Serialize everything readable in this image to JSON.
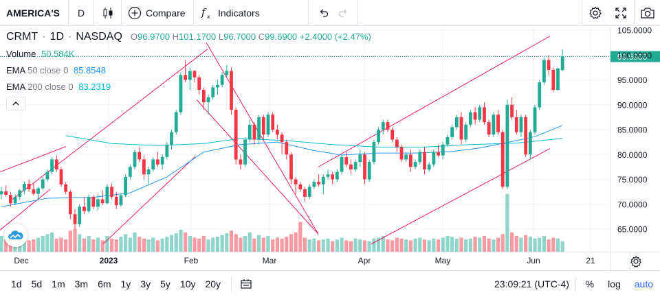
{
  "toolbar": {
    "symbol": "AMERICA'S",
    "interval": "D",
    "compare_label": "Compare",
    "indicators_label": "Indicators",
    "icons": [
      "candles-icon",
      "plus-circle-icon",
      "fx-icon",
      "undo-icon",
      "redo-icon",
      "gear-icon",
      "fullscreen-icon",
      "camera-icon"
    ]
  },
  "legend": {
    "ticker": "CRMT",
    "interval": "1D",
    "exchange": "NASDAQ",
    "o_key": "O",
    "o_val": "96.9700",
    "h_key": "H",
    "h_val": "101.1700",
    "l_key": "L",
    "l_val": "96.7000",
    "c_key": "C",
    "c_val": "99.6900",
    "change": "+2.4000 (+2.47%)",
    "volume_label": "Volume",
    "volume_value": "50.584K",
    "ema50_label": "EMA",
    "ema50_params": "50 close 0",
    "ema50_value": "85.8548",
    "ema200_label": "EMA",
    "ema200_params": "200 close 0",
    "ema200_value": "83.2319"
  },
  "colors": {
    "up": "#22ab94",
    "down": "#f23645",
    "ema50": "#2196f3",
    "ema200": "#00bcd4",
    "trendline": "#e91e63",
    "last_price_bg": "#22ab94"
  },
  "chart_data": {
    "type": "candlestick",
    "y_ticks": [
      "105.0000",
      "100.0000",
      "95.0000",
      "90.0000",
      "85.0000",
      "80.0000",
      "75.0000",
      "70.0000",
      "65.0000"
    ],
    "ylim": [
      62,
      106
    ],
    "x_ticks": [
      {
        "label": "Dec",
        "bold": false
      },
      {
        "label": "2023",
        "bold": true
      },
      {
        "label": "Feb",
        "bold": false
      },
      {
        "label": "Mar",
        "bold": false
      },
      {
        "label": "Apr",
        "bold": false
      },
      {
        "label": "May",
        "bold": false
      },
      {
        "label": "Jun",
        "bold": false
      },
      {
        "label": "21",
        "bold": false
      }
    ],
    "last_price": "99.6900",
    "candles": [
      [
        72.0,
        73.5,
        71.0,
        72.6
      ],
      [
        72.6,
        73.8,
        71.5,
        71.9
      ],
      [
        71.9,
        72.5,
        69.5,
        70.2
      ],
      [
        70.2,
        72.0,
        69.8,
        71.5
      ],
      [
        71.5,
        73.0,
        70.8,
        72.8
      ],
      [
        72.8,
        74.5,
        72.0,
        74.1
      ],
      [
        74.1,
        75.0,
        72.5,
        73.0
      ],
      [
        73.0,
        74.2,
        71.8,
        72.1
      ],
      [
        72.1,
        73.5,
        71.0,
        73.2
      ],
      [
        73.2,
        75.5,
        72.8,
        75.0
      ],
      [
        75.0,
        77.0,
        74.5,
        76.5
      ],
      [
        76.5,
        79.5,
        76.0,
        79.0
      ],
      [
        79.0,
        79.8,
        76.5,
        77.0
      ],
      [
        77.0,
        77.5,
        73.5,
        74.0
      ],
      [
        74.0,
        74.5,
        72.0,
        72.5
      ],
      [
        72.5,
        72.9,
        67.0,
        68.0
      ],
      [
        68.0,
        69.0,
        65.0,
        66.0
      ],
      [
        66.0,
        70.0,
        65.5,
        69.5
      ],
      [
        69.5,
        71.5,
        68.0,
        68.6
      ],
      [
        68.6,
        72.0,
        68.2,
        71.5
      ],
      [
        71.5,
        71.8,
        69.0,
        69.5
      ],
      [
        69.5,
        72.0,
        68.8,
        71.0
      ],
      [
        71.0,
        72.8,
        69.8,
        70.2
      ],
      [
        70.2,
        74.0,
        70.0,
        73.5
      ],
      [
        73.5,
        74.2,
        71.0,
        71.5
      ],
      [
        71.5,
        72.5,
        69.0,
        69.8
      ],
      [
        69.8,
        72.0,
        69.5,
        71.8
      ],
      [
        71.8,
        76.0,
        71.5,
        75.5
      ],
      [
        75.5,
        78.0,
        75.0,
        77.5
      ],
      [
        77.5,
        81.0,
        77.0,
        80.5
      ],
      [
        80.5,
        81.5,
        78.5,
        79.0
      ],
      [
        79.0,
        79.8,
        75.0,
        76.0
      ],
      [
        76.0,
        77.5,
        74.0,
        77.0
      ],
      [
        77.0,
        79.5,
        76.5,
        79.0
      ],
      [
        79.0,
        80.5,
        77.5,
        78.0
      ],
      [
        78.0,
        80.0,
        77.0,
        79.5
      ],
      [
        79.5,
        82.5,
        79.0,
        82.0
      ],
      [
        82.0,
        85.0,
        81.0,
        84.5
      ],
      [
        84.5,
        89.0,
        84.0,
        88.5
      ],
      [
        88.5,
        96.5,
        88.0,
        96.0
      ],
      [
        96.0,
        99.0,
        94.5,
        95.0
      ],
      [
        95.0,
        97.5,
        93.0,
        96.8
      ],
      [
        96.8,
        97.0,
        94.5,
        95.5
      ],
      [
        95.5,
        96.0,
        92.0,
        93.0
      ],
      [
        93.0,
        93.5,
        89.0,
        90.5
      ],
      [
        90.5,
        92.0,
        88.0,
        91.5
      ],
      [
        91.5,
        94.0,
        91.0,
        93.5
      ],
      [
        93.5,
        95.0,
        92.0,
        94.0
      ],
      [
        94.0,
        96.5,
        93.5,
        96.0
      ],
      [
        96.0,
        98.0,
        95.5,
        96.8
      ],
      [
        96.8,
        97.5,
        88.0,
        89.0
      ],
      [
        89.0,
        89.5,
        78.0,
        79.0
      ],
      [
        79.0,
        80.0,
        77.0,
        78.0
      ],
      [
        78.0,
        83.5,
        77.5,
        83.0
      ],
      [
        83.0,
        87.0,
        82.5,
        86.0
      ],
      [
        86.0,
        86.5,
        82.0,
        83.0
      ],
      [
        83.0,
        88.0,
        82.0,
        87.5
      ],
      [
        87.5,
        88.0,
        83.0,
        84.0
      ],
      [
        84.0,
        88.5,
        83.5,
        88.0
      ],
      [
        88.0,
        88.5,
        84.5,
        85.0
      ],
      [
        85.0,
        86.0,
        83.0,
        84.0
      ],
      [
        84.0,
        84.5,
        80.0,
        82.5
      ],
      [
        82.5,
        83.0,
        79.0,
        80.0
      ],
      [
        80.0,
        80.5,
        74.0,
        75.0
      ],
      [
        75.0,
        75.5,
        72.0,
        74.0
      ],
      [
        74.0,
        74.5,
        72.5,
        73.0
      ],
      [
        73.0,
        73.5,
        70.5,
        71.5
      ],
      [
        71.5,
        74.0,
        71.0,
        73.5
      ],
      [
        73.5,
        75.0,
        73.0,
        74.5
      ],
      [
        74.5,
        76.0,
        73.5,
        74.0
      ],
      [
        74.0,
        76.0,
        72.0,
        75.5
      ],
      [
        75.5,
        77.0,
        75.0,
        76.0
      ],
      [
        76.0,
        76.5,
        74.0,
        75.0
      ],
      [
        75.0,
        77.0,
        74.5,
        76.5
      ],
      [
        76.5,
        80.0,
        76.0,
        79.5
      ],
      [
        79.5,
        80.5,
        77.5,
        78.0
      ],
      [
        78.0,
        79.0,
        76.0,
        77.0
      ],
      [
        77.0,
        79.0,
        76.5,
        78.5
      ],
      [
        78.5,
        81.0,
        77.5,
        80.0
      ],
      [
        80.0,
        80.5,
        74.0,
        75.0
      ],
      [
        75.0,
        79.0,
        74.5,
        78.5
      ],
      [
        78.5,
        83.0,
        78.0,
        82.5
      ],
      [
        82.5,
        85.5,
        82.0,
        85.0
      ],
      [
        85.0,
        87.0,
        84.0,
        86.5
      ],
      [
        86.5,
        87.0,
        84.5,
        85.0
      ],
      [
        85.0,
        85.5,
        82.5,
        83.0
      ],
      [
        83.0,
        83.5,
        80.5,
        81.5
      ],
      [
        81.5,
        82.0,
        78.5,
        79.0
      ],
      [
        79.0,
        80.5,
        78.5,
        80.0
      ],
      [
        80.0,
        81.0,
        76.5,
        77.5
      ],
      [
        77.5,
        79.0,
        77.0,
        78.5
      ],
      [
        78.5,
        81.0,
        78.0,
        80.5
      ],
      [
        80.5,
        81.5,
        76.0,
        77.0
      ],
      [
        77.0,
        78.5,
        76.5,
        78.0
      ],
      [
        78.0,
        81.0,
        77.5,
        80.5
      ],
      [
        80.5,
        82.0,
        79.5,
        79.8
      ],
      [
        79.8,
        82.5,
        79.0,
        82.0
      ],
      [
        82.0,
        84.0,
        81.5,
        83.5
      ],
      [
        83.5,
        86.0,
        83.0,
        85.5
      ],
      [
        85.5,
        88.0,
        85.0,
        87.5
      ],
      [
        87.5,
        88.5,
        82.0,
        83.0
      ],
      [
        83.0,
        86.5,
        82.5,
        86.0
      ],
      [
        86.0,
        89.0,
        85.5,
        88.5
      ],
      [
        88.5,
        89.5,
        86.0,
        87.0
      ],
      [
        87.0,
        90.0,
        86.5,
        89.5
      ],
      [
        89.5,
        90.5,
        86.0,
        86.5
      ],
      [
        86.5,
        87.0,
        83.5,
        84.0
      ],
      [
        84.0,
        88.5,
        83.5,
        88.0
      ],
      [
        88.0,
        89.0,
        84.0,
        84.5
      ],
      [
        84.5,
        85.0,
        73.0,
        73.5
      ],
      [
        73.5,
        91.0,
        73.0,
        90.0
      ],
      [
        90.0,
        91.5,
        87.0,
        87.5
      ],
      [
        87.5,
        89.0,
        84.0,
        84.5
      ],
      [
        84.5,
        88.0,
        83.5,
        87.5
      ],
      [
        87.5,
        88.0,
        79.5,
        80.0
      ],
      [
        80.0,
        85.0,
        79.0,
        84.5
      ],
      [
        84.5,
        90.0,
        84.0,
        89.5
      ],
      [
        89.5,
        95.0,
        89.0,
        94.5
      ],
      [
        94.5,
        99.5,
        94.0,
        99.0
      ],
      [
        99.0,
        100.0,
        96.0,
        97.0
      ],
      [
        97.0,
        97.5,
        92.5,
        93.0
      ],
      [
        93.0,
        97.5,
        92.8,
        97.3
      ],
      [
        96.97,
        101.17,
        96.7,
        99.69
      ]
    ],
    "volumes": [
      18,
      14,
      16,
      12,
      15,
      17,
      13,
      14,
      16,
      18,
      20,
      22,
      15,
      16,
      14,
      24,
      26,
      20,
      15,
      18,
      14,
      16,
      13,
      18,
      15,
      14,
      17,
      20,
      16,
      22,
      17,
      15,
      14,
      16,
      13,
      15,
      17,
      19,
      21,
      25,
      22,
      18,
      16,
      15,
      18,
      14,
      16,
      17,
      19,
      21,
      24,
      20,
      16,
      18,
      22,
      15,
      19,
      16,
      18,
      14,
      16,
      15,
      17,
      20,
      22,
      34,
      16,
      14,
      15,
      13,
      14,
      15,
      12,
      14,
      16,
      13,
      12,
      15,
      14,
      13,
      12,
      15,
      16,
      18,
      14,
      13,
      16,
      15,
      14,
      13,
      15,
      16,
      14,
      13,
      15,
      14,
      16,
      18,
      17,
      15,
      16,
      14,
      15,
      17,
      16,
      18,
      15,
      14,
      16,
      20,
      66,
      22,
      18,
      16,
      19,
      17,
      15,
      16,
      18,
      14,
      16,
      15,
      12
    ],
    "ema50": [
      [
        0,
        69.5
      ],
      [
        10,
        71.2
      ],
      [
        20,
        71.4
      ],
      [
        28,
        72.3
      ],
      [
        36,
        75.5
      ],
      [
        44,
        80.5
      ],
      [
        52,
        82.0
      ],
      [
        60,
        82.5
      ],
      [
        68,
        80.8
      ],
      [
        74,
        79.9
      ],
      [
        82,
        80.3
      ],
      [
        90,
        80.3
      ],
      [
        98,
        80.6
      ],
      [
        104,
        81.3
      ],
      [
        110,
        82.4
      ],
      [
        116,
        83.6
      ],
      [
        122,
        85.85
      ]
    ],
    "ema200": [
      [
        14,
        83.8
      ],
      [
        24,
        82.2
      ],
      [
        34,
        81.8
      ],
      [
        44,
        82.2
      ],
      [
        52,
        83.2
      ],
      [
        62,
        82.8
      ],
      [
        72,
        82.0
      ],
      [
        82,
        81.5
      ],
      [
        92,
        81.5
      ],
      [
        102,
        82.0
      ],
      [
        112,
        82.3
      ],
      [
        122,
        83.23
      ]
    ],
    "trendlines": [
      [
        [
          0,
          76.5
        ],
        [
          96,
          81.6
        ]
      ],
      [
        [
          18,
          71.0
        ],
        [
          302,
          101.2
        ]
      ],
      [
        [
          0,
          64.8
        ],
        [
          73,
          73.0
        ]
      ],
      [
        [
          150,
          62.0
        ],
        [
          284,
          79.6
        ]
      ],
      [
        [
          300,
          102.5
        ],
        [
          463,
          64.0
        ]
      ],
      [
        [
          286,
          91.0
        ],
        [
          463,
          64.0
        ]
      ],
      [
        [
          463,
          77.5
        ],
        [
          800,
          103.8
        ]
      ],
      [
        [
          540,
          62.0
        ],
        [
          800,
          81.2
        ]
      ]
    ]
  },
  "bottom": {
    "ranges": [
      "1d",
      "5d",
      "1m",
      "3m",
      "6m",
      "1y",
      "3y",
      "5y",
      "10y",
      "20y"
    ],
    "time": "23:09:21 (UTC-4)",
    "percent_label": "%",
    "log_label": "log",
    "auto_label": "auto"
  }
}
